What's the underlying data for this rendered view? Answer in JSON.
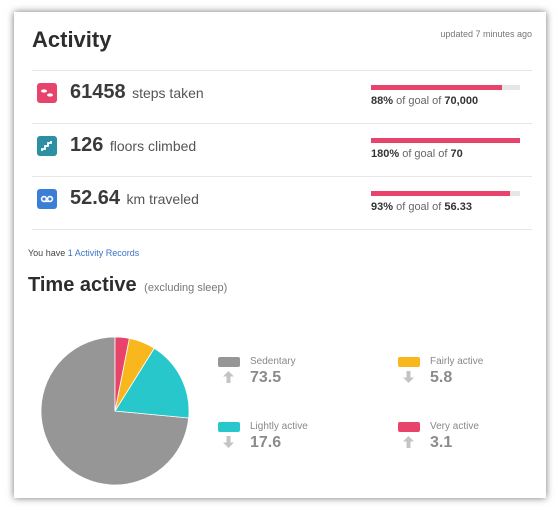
{
  "activity": {
    "title": "Activity",
    "updated": "updated 7 minutes ago",
    "metrics": [
      {
        "icon": "steps-icon",
        "icon_color": "#e8446b",
        "value": "61458",
        "unit": "steps taken",
        "progress": 0.88,
        "goal_pct": "88%",
        "goal_of": "of goal of",
        "goal_value": "70,000"
      },
      {
        "icon": "floors-icon",
        "icon_color": "#2c8fa3",
        "value": "126",
        "unit": "floors climbed",
        "progress": 1.0,
        "goal_pct": "180%",
        "goal_of": "of goal of",
        "goal_value": "70"
      },
      {
        "icon": "distance-icon",
        "icon_color": "#3a7fd5",
        "value": "52.64",
        "unit": "km traveled",
        "progress": 0.93,
        "goal_pct": "93%",
        "goal_of": "of goal of",
        "goal_value": "56.33"
      }
    ],
    "records_prefix": "You have",
    "records_link": "1 Activity Records"
  },
  "time_active": {
    "title": "Time active",
    "subtitle": "(excluding sleep)",
    "legend": [
      {
        "label": "Sedentary",
        "value": "73.5",
        "color": "#969696",
        "trend": "up"
      },
      {
        "label": "Fairly active",
        "value": "5.8",
        "color": "#f8b81d",
        "trend": "down"
      },
      {
        "label": "Lightly active",
        "value": "17.6",
        "color": "#27c7cb",
        "trend": "down"
      },
      {
        "label": "Very active",
        "value": "3.1",
        "color": "#e8446b",
        "trend": "up"
      }
    ]
  },
  "chart_data": {
    "type": "pie",
    "categories": [
      "Sedentary",
      "Lightly active",
      "Fairly active",
      "Very active"
    ],
    "values": [
      73.5,
      17.6,
      5.8,
      3.1
    ],
    "colors": [
      "#969696",
      "#27c7cb",
      "#f8b81d",
      "#e8446b"
    ]
  }
}
